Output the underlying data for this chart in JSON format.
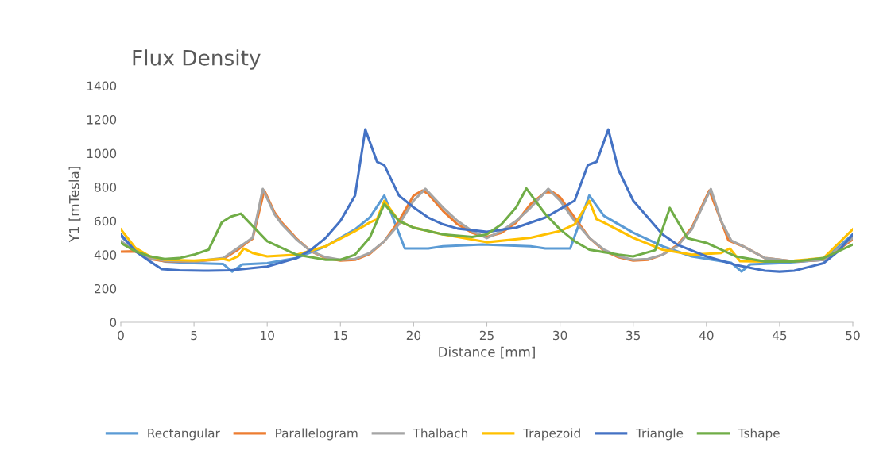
{
  "chart_data": {
    "type": "line",
    "title": "Flux Density",
    "xlabel": "Distance [mm]",
    "ylabel": "Y1 [mTesla]",
    "xlim": [
      0,
      50
    ],
    "xticks": [
      0,
      5,
      10,
      15,
      20,
      25,
      30,
      35,
      40,
      45,
      50
    ],
    "ylim": [
      0,
      1400
    ],
    "yticks": [
      0,
      200,
      400,
      600,
      800,
      1000,
      1200,
      1400
    ],
    "grid": false,
    "legend": "bottom",
    "marker": "none",
    "line_style": "solid",
    "series": [
      {
        "name": "Rectangular",
        "color": "#5b9bd5",
        "x": [
          0,
          1,
          2,
          3,
          5,
          7,
          7.6,
          8.3,
          10,
          12,
          14,
          16,
          17,
          18,
          19.4,
          21,
          22,
          24.7,
          28,
          29,
          30.7,
          32,
          33,
          35,
          37,
          39,
          41.7,
          42.4,
          43,
          45,
          48,
          50
        ],
        "values": [
          510,
          430,
          380,
          360,
          350,
          345,
          300,
          343,
          350,
          380,
          450,
          550,
          620,
          750,
          437,
          437,
          450,
          460,
          450,
          437,
          437,
          750,
          630,
          530,
          450,
          390,
          352,
          300,
          343,
          350,
          370,
          520
        ]
      },
      {
        "name": "Parallelogram",
        "color": "#ed7d31",
        "x": [
          0,
          1,
          2,
          3,
          5,
          7,
          8,
          8.5,
          9,
          9.8,
          10.5,
          11,
          12,
          13,
          14,
          15,
          16,
          17,
          18,
          19,
          20,
          20.6,
          21,
          22,
          23,
          24,
          25,
          26,
          27,
          28,
          29,
          29.5,
          30,
          31,
          32,
          33,
          34,
          35,
          36,
          37,
          38,
          39,
          40.2,
          41,
          41.5,
          42.5,
          44,
          46,
          48,
          50
        ],
        "values": [
          418,
          420,
          375,
          362,
          360,
          375,
          430,
          465,
          495,
          780,
          650,
          590,
          495,
          420,
          380,
          365,
          370,
          405,
          480,
          600,
          750,
          780,
          760,
          660,
          580,
          530,
          505,
          530,
          590,
          700,
          770,
          770,
          740,
          620,
          500,
          425,
          385,
          365,
          370,
          400,
          455,
          560,
          780,
          600,
          485,
          450,
          380,
          360,
          370,
          490
        ]
      },
      {
        "name": "Thalbach",
        "color": "#a5a5a5",
        "x": [
          0,
          1,
          2,
          3,
          5,
          7,
          8,
          8.5,
          9,
          9.7,
          10.5,
          11,
          12,
          13,
          14,
          15,
          16,
          17,
          18,
          19,
          20,
          20.8,
          22,
          23,
          24,
          25,
          26,
          27,
          28,
          29.2,
          30,
          31,
          32,
          33,
          34,
          35,
          36,
          37,
          38,
          39,
          40.3,
          41,
          41.7,
          42.5,
          44,
          46,
          48,
          50
        ],
        "values": [
          480,
          420,
          380,
          365,
          360,
          380,
          440,
          470,
          500,
          789,
          640,
          580,
          490,
          420,
          385,
          370,
          375,
          410,
          480,
          580,
          720,
          790,
          680,
          600,
          540,
          498,
          540,
          600,
          680,
          790,
          720,
          600,
          500,
          430,
          390,
          370,
          375,
          400,
          450,
          550,
          789,
          600,
          483,
          450,
          380,
          360,
          370,
          500
        ]
      },
      {
        "name": "Trapezoid",
        "color": "#ffc000",
        "x": [
          0,
          1,
          2,
          3,
          5,
          7,
          7.4,
          8,
          8.4,
          9,
          10,
          12,
          14,
          16,
          17,
          17.5,
          18,
          19,
          20,
          22,
          25,
          28,
          30,
          31,
          32,
          32.5,
          33,
          35,
          37,
          39,
          41,
          41.6,
          42.3,
          44,
          46,
          48,
          50
        ],
        "values": [
          550,
          440,
          390,
          370,
          365,
          375,
          366,
          390,
          437,
          410,
          390,
          400,
          450,
          540,
          590,
          610,
          718,
          600,
          560,
          520,
          474,
          500,
          540,
          580,
          718,
          610,
          590,
          500,
          430,
          400,
          410,
          437,
          362,
          360,
          365,
          380,
          550
        ]
      },
      {
        "name": "Triangle",
        "color": "#4472c4",
        "x": [
          0,
          1,
          2,
          2.8,
          4,
          6,
          7.5,
          10,
          12,
          13,
          14,
          15,
          16,
          16.7,
          17.5,
          18,
          19,
          20,
          21,
          22,
          23,
          25,
          27,
          29,
          30,
          31,
          31.9,
          32.5,
          33.3,
          34,
          35,
          36,
          37,
          38,
          40,
          42,
          44,
          45,
          46,
          48,
          49,
          50
        ],
        "values": [
          520,
          420,
          360,
          315,
          308,
          305,
          308,
          330,
          380,
          430,
          500,
          600,
          750,
          1141,
          950,
          930,
          750,
          680,
          620,
          580,
          555,
          535,
          560,
          620,
          670,
          720,
          930,
          950,
          1141,
          900,
          720,
          620,
          520,
          460,
          390,
          340,
          305,
          300,
          305,
          350,
          420,
          520
        ]
      },
      {
        "name": "Tshape",
        "color": "#70ad47",
        "x": [
          0,
          1,
          2,
          3,
          4,
          5,
          6,
          6.9,
          7.5,
          8.2,
          9,
          10,
          11,
          12,
          13,
          14,
          15,
          16,
          17,
          18,
          19,
          20,
          22,
          24,
          25,
          26,
          27,
          27.7,
          29,
          30,
          31,
          32,
          34,
          35,
          36.5,
          37.5,
          38.7,
          40,
          42,
          44,
          46,
          48,
          50
        ],
        "values": [
          470,
          420,
          390,
          375,
          380,
          400,
          430,
          592,
          625,
          643,
          570,
          480,
          440,
          400,
          385,
          370,
          370,
          400,
          500,
          700,
          600,
          560,
          520,
          505,
          520,
          580,
          680,
          792,
          640,
          550,
          480,
          430,
          400,
          390,
          427,
          677,
          498,
          470,
          390,
          360,
          360,
          380,
          460
        ]
      }
    ]
  }
}
